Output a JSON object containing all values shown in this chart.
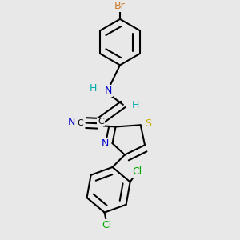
{
  "bg_color": "#e8e8e8",
  "colors": {
    "Br": "#cc7722",
    "N": "#0000cc",
    "S": "#ccaa00",
    "Cl": "#00aa00",
    "H": "#00aaaa",
    "C": "#000000",
    "bond": "#000000"
  },
  "lw": 1.5,
  "fs": 9.0,
  "fs_small": 8.0
}
